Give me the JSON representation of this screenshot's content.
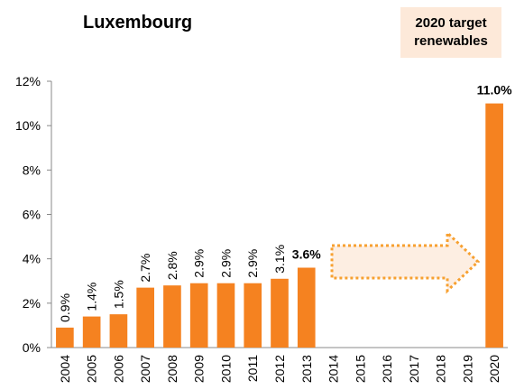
{
  "chart_data": {
    "type": "bar",
    "title": "Luxembourg",
    "annotation": "2020 target renewables",
    "categories": [
      "2004",
      "2005",
      "2006",
      "2007",
      "2008",
      "2009",
      "2010",
      "2011",
      "2012",
      "2013",
      "2014",
      "2015",
      "2016",
      "2017",
      "2018",
      "2019",
      "2020"
    ],
    "values": [
      0.9,
      1.4,
      1.5,
      2.7,
      2.8,
      2.9,
      2.9,
      2.9,
      3.1,
      3.6,
      null,
      null,
      null,
      null,
      null,
      null,
      11.0
    ],
    "value_labels": [
      "0.9%",
      "1.4%",
      "1.5%",
      "2.7%",
      "2.8%",
      "2.9%",
      "2.9%",
      "2.9%",
      "3.1%",
      "3.6%",
      null,
      null,
      null,
      null,
      null,
      null,
      "11.0%"
    ],
    "color": "#f58220",
    "ylim": [
      0,
      12
    ],
    "yticks": [
      {
        "value": 0,
        "label": "0%"
      },
      {
        "value": 2,
        "label": "2%"
      },
      {
        "value": 4,
        "label": "4%"
      },
      {
        "value": 6,
        "label": "6%"
      },
      {
        "value": 8,
        "label": "8%"
      },
      {
        "value": 10,
        "label": "10%"
      },
      {
        "value": 12,
        "label": "12%"
      }
    ],
    "grid": false
  }
}
